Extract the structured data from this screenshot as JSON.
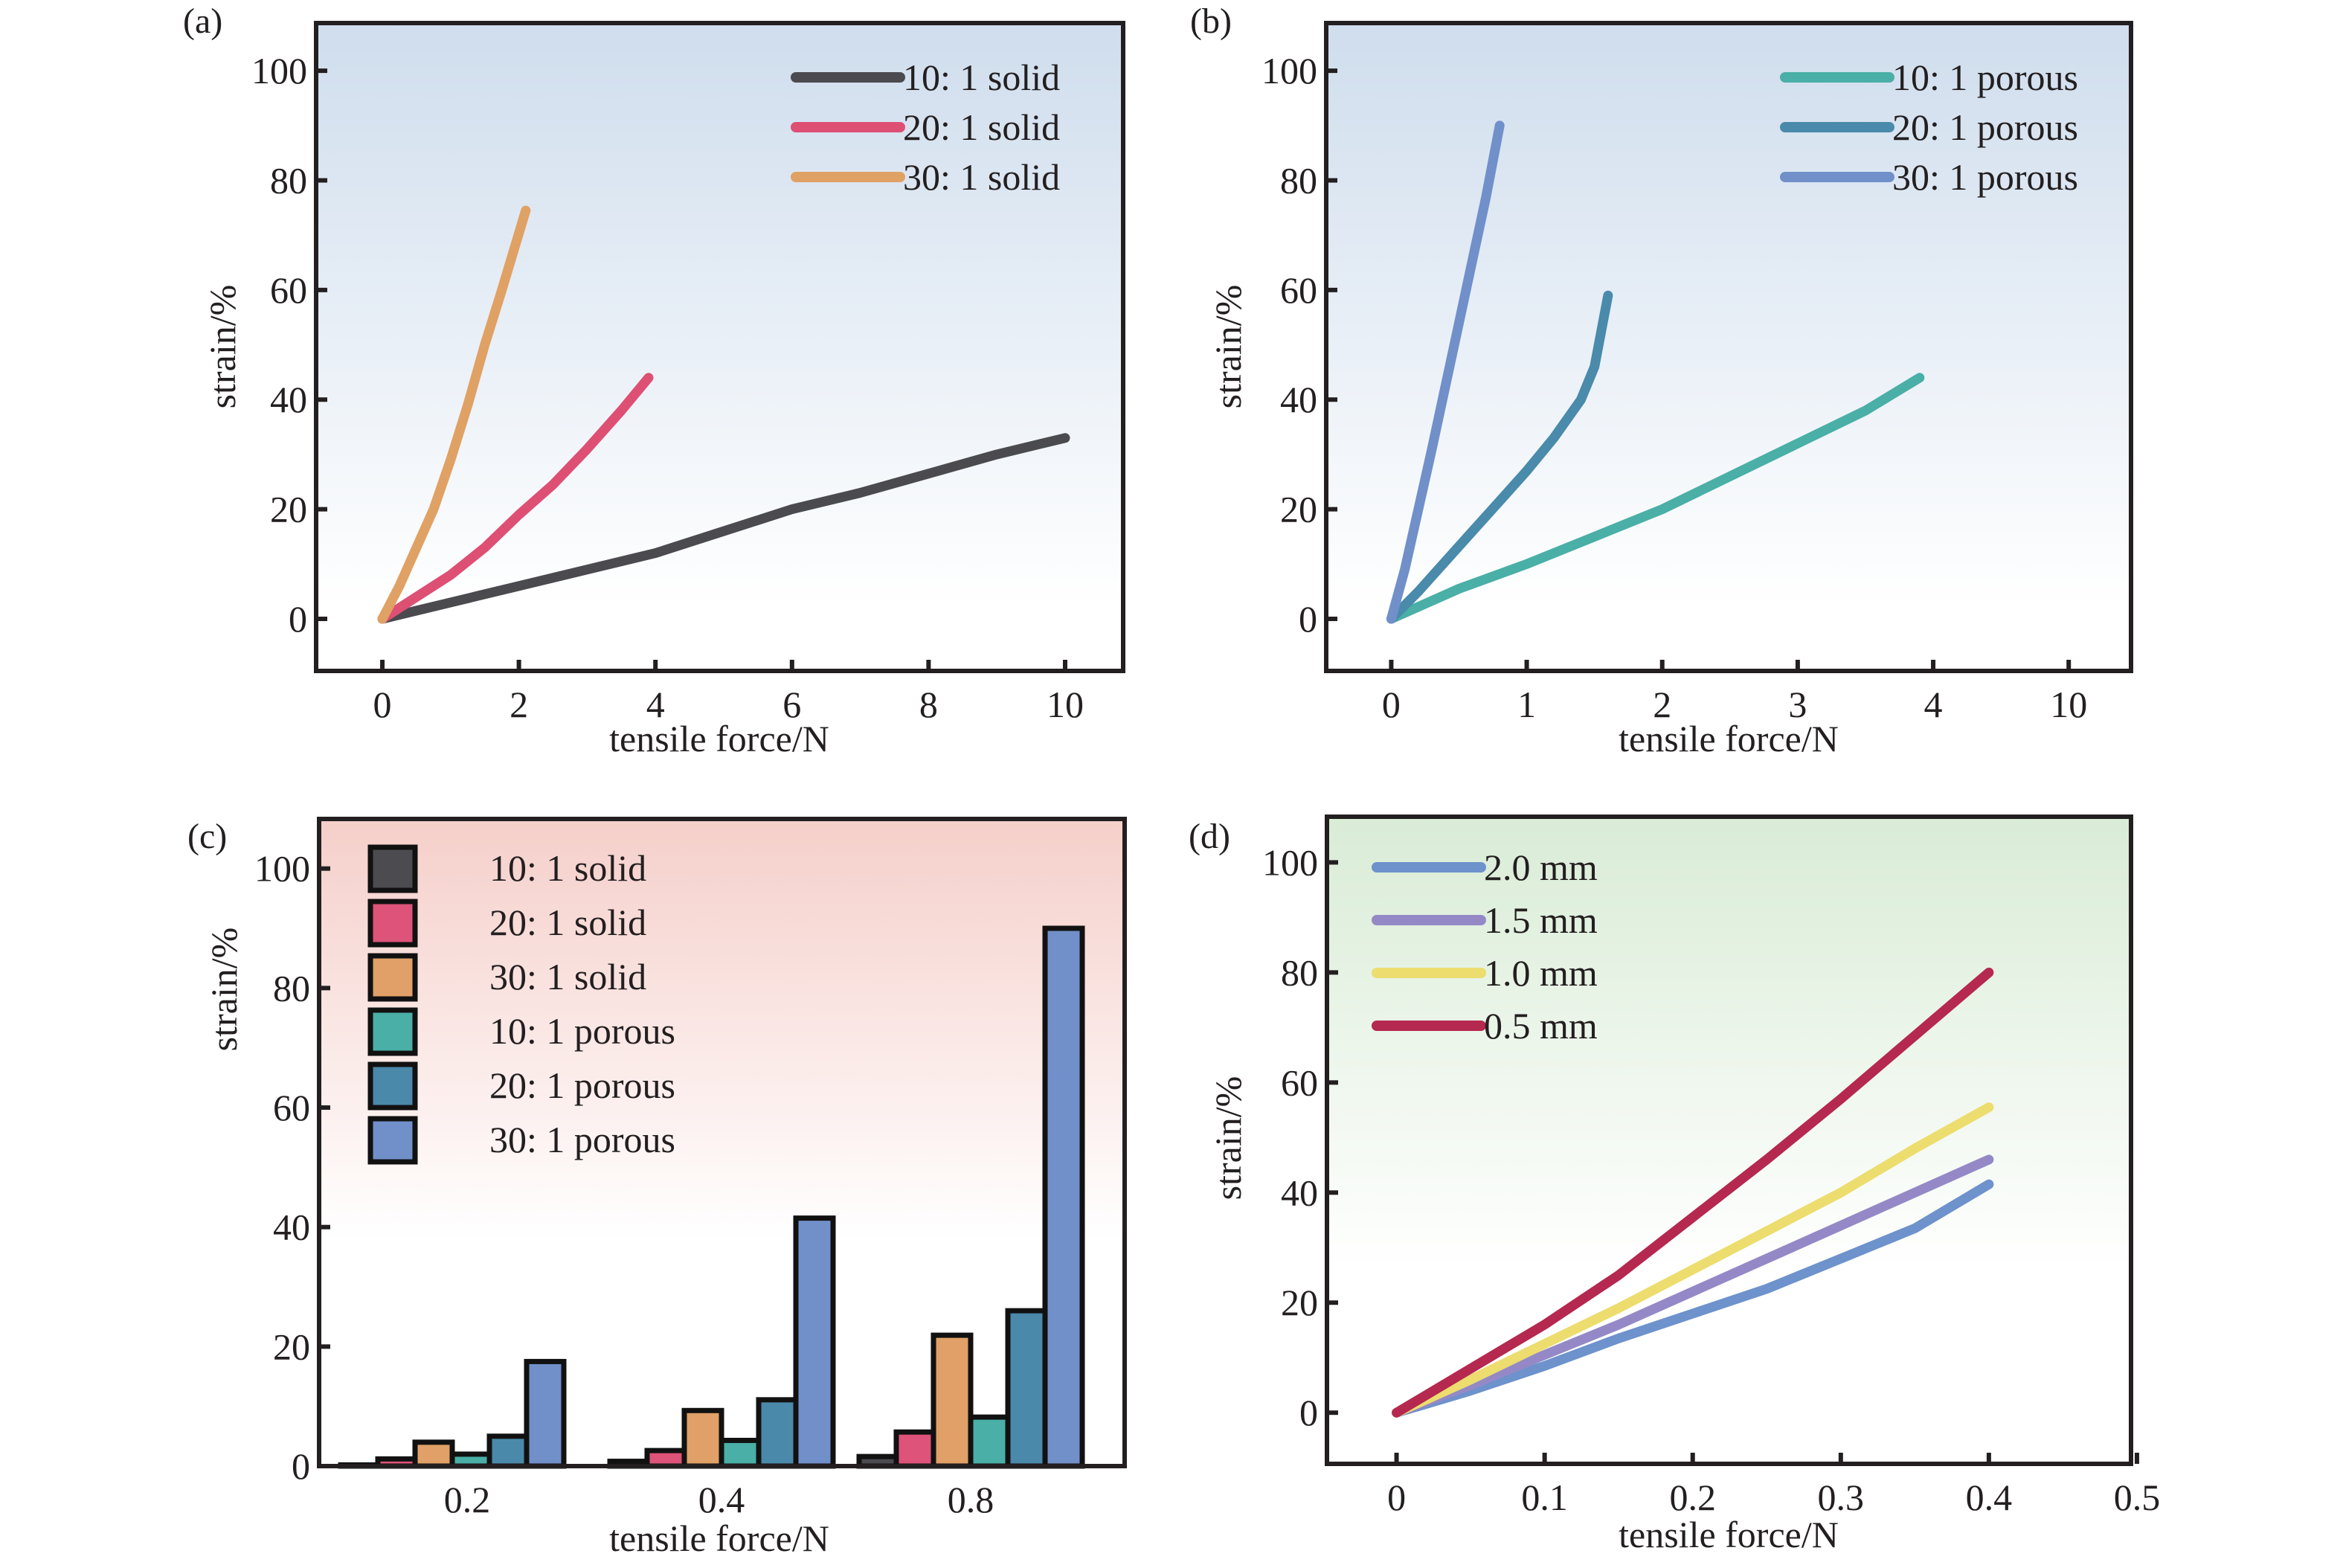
{
  "chart_data": [
    {
      "id": "a",
      "panel_label": "(a)",
      "type": "line",
      "xlabel": "tensile force/N",
      "ylabel": "strain/%",
      "xticks": [
        0,
        2,
        4,
        6,
        8,
        10
      ],
      "yticks": [
        0,
        20,
        40,
        60,
        80,
        100
      ],
      "xlim": [
        -0.97,
        10.85
      ],
      "ylim": [
        -9.5,
        108.7
      ],
      "legend_position": "top-right",
      "background": [
        "#cfdded",
        "#ffffff"
      ],
      "series": [
        {
          "name": "10: 1 solid",
          "color": "#4a4a4f",
          "x": [
            0,
            1,
            2,
            3,
            4,
            5,
            6,
            7,
            8,
            9,
            10
          ],
          "y": [
            0,
            3,
            6,
            9,
            12,
            16,
            20,
            23,
            26.5,
            30,
            33
          ]
        },
        {
          "name": "20: 1 solid",
          "color": "#de4f74",
          "x": [
            0,
            0.5,
            1,
            1.5,
            2,
            2.5,
            3,
            3.5,
            3.9
          ],
          "y": [
            0,
            4,
            8,
            13,
            19,
            24.5,
            31,
            38,
            44
          ]
        },
        {
          "name": "30: 1 solid",
          "color": "#e0a165",
          "x": [
            0,
            0.25,
            0.5,
            0.75,
            1,
            1.25,
            1.5,
            1.75,
            2.1
          ],
          "y": [
            0,
            6,
            13,
            20,
            29,
            39,
            50,
            60,
            74.5
          ]
        }
      ]
    },
    {
      "id": "b",
      "panel_label": "(b)",
      "type": "line",
      "xlabel": "tensile force/N",
      "ylabel": "strain/%",
      "xticks": [
        "0",
        "1",
        "2",
        "3",
        "4",
        "10"
      ],
      "yticks": [
        0,
        20,
        40,
        60,
        80,
        100
      ],
      "xlim": [
        -0.48,
        5.46
      ],
      "ylim": [
        -9.5,
        108.7
      ],
      "legend_position": "top-right",
      "background": [
        "#cfdded",
        "#ffffff"
      ],
      "series": [
        {
          "name": "10: 1 porous",
          "color": "#4aafa6",
          "x": [
            0,
            0.5,
            1,
            1.5,
            2,
            2.5,
            3,
            3.5,
            3.9
          ],
          "y": [
            0,
            5.5,
            10,
            15,
            20,
            26,
            32,
            38,
            44
          ]
        },
        {
          "name": "20: 1 porous",
          "color": "#4a8aab",
          "x": [
            0,
            0.2,
            0.4,
            0.6,
            0.8,
            1,
            1.2,
            1.4,
            1.5,
            1.6
          ],
          "y": [
            0,
            5,
            10.5,
            16,
            21.5,
            27,
            33,
            40,
            46,
            59
          ]
        },
        {
          "name": "30: 1 porous",
          "color": "#7190c9",
          "x": [
            0,
            0.1,
            0.2,
            0.3,
            0.4,
            0.5,
            0.6,
            0.7,
            0.8
          ],
          "y": [
            0,
            9,
            20,
            31,
            42.5,
            54,
            65.5,
            77,
            90
          ]
        }
      ]
    },
    {
      "id": "c",
      "panel_label": "(c)",
      "type": "bar",
      "xlabel": "tensile force/N",
      "ylabel": "strain/%",
      "categories": [
        "0.2",
        "0.4",
        "0.8"
      ],
      "yticks": [
        0,
        20,
        40,
        60,
        80,
        100
      ],
      "ylim": [
        0,
        108.3
      ],
      "legend_position": "top-left",
      "background": [
        "#f5cfca",
        "#ffffff"
      ],
      "series": [
        {
          "name": "10: 1 solid",
          "color": "#4c4b50",
          "values": [
            0.2,
            0.8,
            1.6
          ]
        },
        {
          "name": "20: 1 solid",
          "color": "#de5379",
          "values": [
            1.2,
            2.6,
            5.7
          ]
        },
        {
          "name": "30: 1 solid",
          "color": "#e0a067",
          "values": [
            4,
            9.3,
            21.9
          ]
        },
        {
          "name": "10: 1 porous",
          "color": "#4aafa6",
          "values": [
            2,
            4.3,
            8.2
          ]
        },
        {
          "name": "20: 1 porous",
          "color": "#4a89aa",
          "values": [
            5,
            11.1,
            26
          ]
        },
        {
          "name": "30: 1 porous",
          "color": "#7190c9",
          "values": [
            17.5,
            41.5,
            90
          ]
        }
      ]
    },
    {
      "id": "d",
      "panel_label": "(d)",
      "type": "line",
      "xlabel": "tensile force/N",
      "ylabel": "strain/%",
      "xticks": [
        "0",
        "0.1",
        "0.2",
        "0.3",
        "0.4",
        "0.5"
      ],
      "yticks": [
        0,
        20,
        40,
        60,
        80,
        100
      ],
      "xlim": [
        -0.047,
        0.496
      ],
      "ylim": [
        -9.3,
        108.3
      ],
      "legend_position": "top-left",
      "background": [
        "#d9ecd6",
        "#ffffff"
      ],
      "series": [
        {
          "name": "2.0 mm",
          "color": "#6d92cc",
          "x": [
            0,
            0.05,
            0.1,
            0.15,
            0.2,
            0.25,
            0.3,
            0.35,
            0.4
          ],
          "y": [
            0,
            4,
            8.5,
            13.5,
            18,
            22.5,
            28,
            33.5,
            41.5
          ]
        },
        {
          "name": "1.5 mm",
          "color": "#9489c6",
          "x": [
            0,
            0.05,
            0.1,
            0.15,
            0.2,
            0.25,
            0.3,
            0.35,
            0.4
          ],
          "y": [
            0,
            5,
            10.5,
            16,
            22,
            28,
            34,
            40,
            46
          ]
        },
        {
          "name": "1.0 mm",
          "color": "#ecdd6e",
          "x": [
            0,
            0.05,
            0.1,
            0.15,
            0.2,
            0.25,
            0.3,
            0.35,
            0.4
          ],
          "y": [
            0,
            6,
            12.5,
            19,
            26,
            33,
            40,
            48,
            55.5
          ]
        },
        {
          "name": "0.5 mm",
          "color": "#b5284f",
          "x": [
            0,
            0.05,
            0.1,
            0.15,
            0.2,
            0.25,
            0.3,
            0.35,
            0.4
          ],
          "y": [
            0,
            8,
            16,
            25,
            35.5,
            46,
            57,
            68.5,
            80
          ]
        }
      ]
    }
  ]
}
